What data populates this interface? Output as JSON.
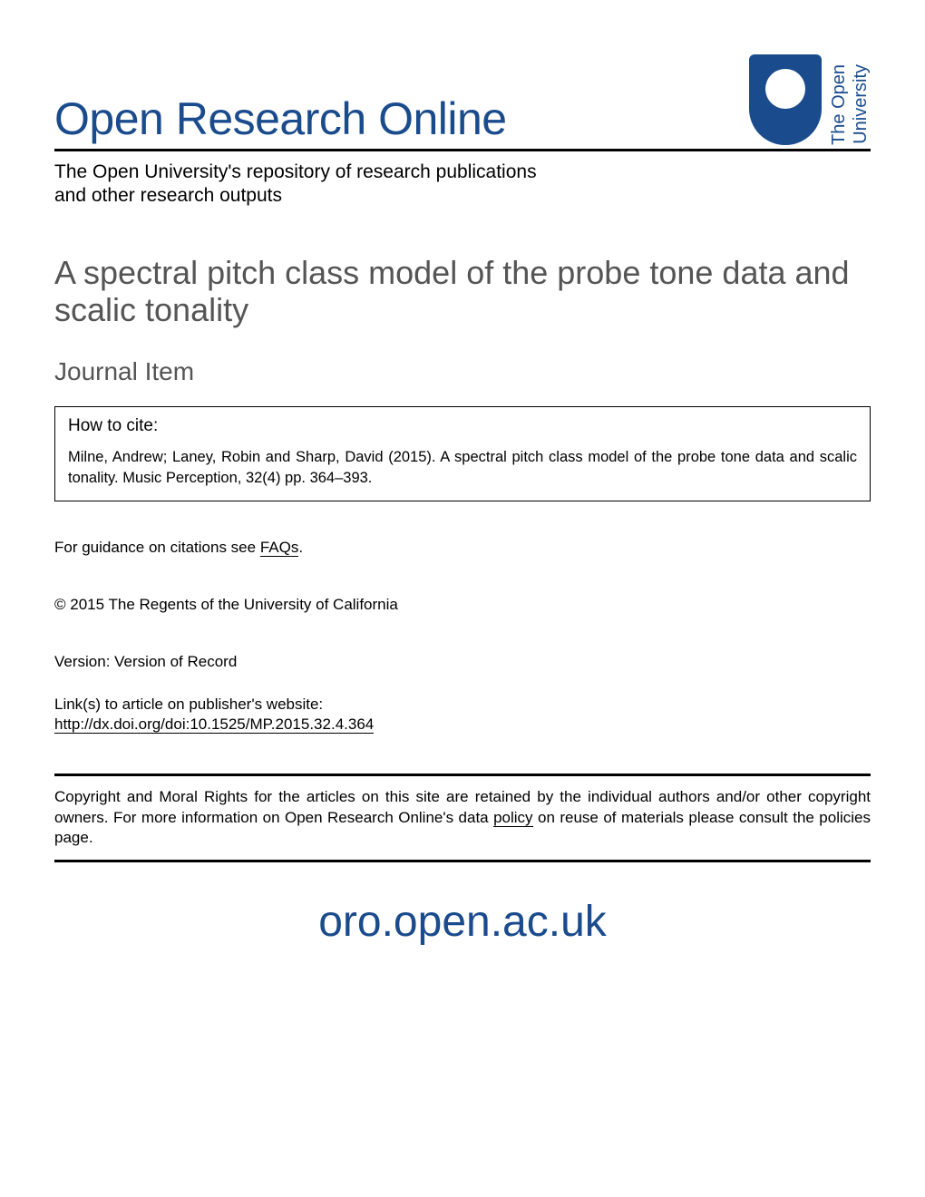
{
  "header": {
    "title": "Open Research Online",
    "subtitle_line1": "The Open University's repository of research publications",
    "subtitle_line2": "and other research outputs",
    "logo_text_line1": "The Open",
    "logo_text_line2": "University",
    "logo_color": "#1a4b8c",
    "title_color": "#1a4b8c"
  },
  "paper": {
    "title": "A spectral pitch class model of the probe tone data and scalic tonality",
    "type": "Journal Item",
    "title_color": "#555555"
  },
  "cite": {
    "label": "How to cite:",
    "text": "Milne, Andrew; Laney, Robin and Sharp, David (2015). A spectral pitch class model of the probe tone data and scalic tonality. Music Perception, 32(4) pp. 364–393."
  },
  "guidance": {
    "prefix": "For guidance on citations see ",
    "link": "FAQs",
    "suffix": "."
  },
  "copyright_line": "© 2015 The Regents of the University of California",
  "version": "Version: Version of Record",
  "links": {
    "label": "Link(s) to article on publisher's website:",
    "url": "http://dx.doi.org/doi:10.1525/MP.2015.32.4.364"
  },
  "rights": {
    "text_before": "Copyright and Moral Rights for the articles on this site are retained by the individual authors and/or other copyright owners. For more information on Open Research Online's data ",
    "policy": "policy",
    "text_after": " on reuse of materials please consult the policies page."
  },
  "footer_url": "oro.open.ac.uk",
  "colors": {
    "brand": "#1a4b8c",
    "text": "#000000",
    "muted": "#555555",
    "background": "#ffffff"
  },
  "fonts": {
    "main_title": 50,
    "paper_title": 36,
    "section": 28,
    "body": 17,
    "footer": 48
  }
}
